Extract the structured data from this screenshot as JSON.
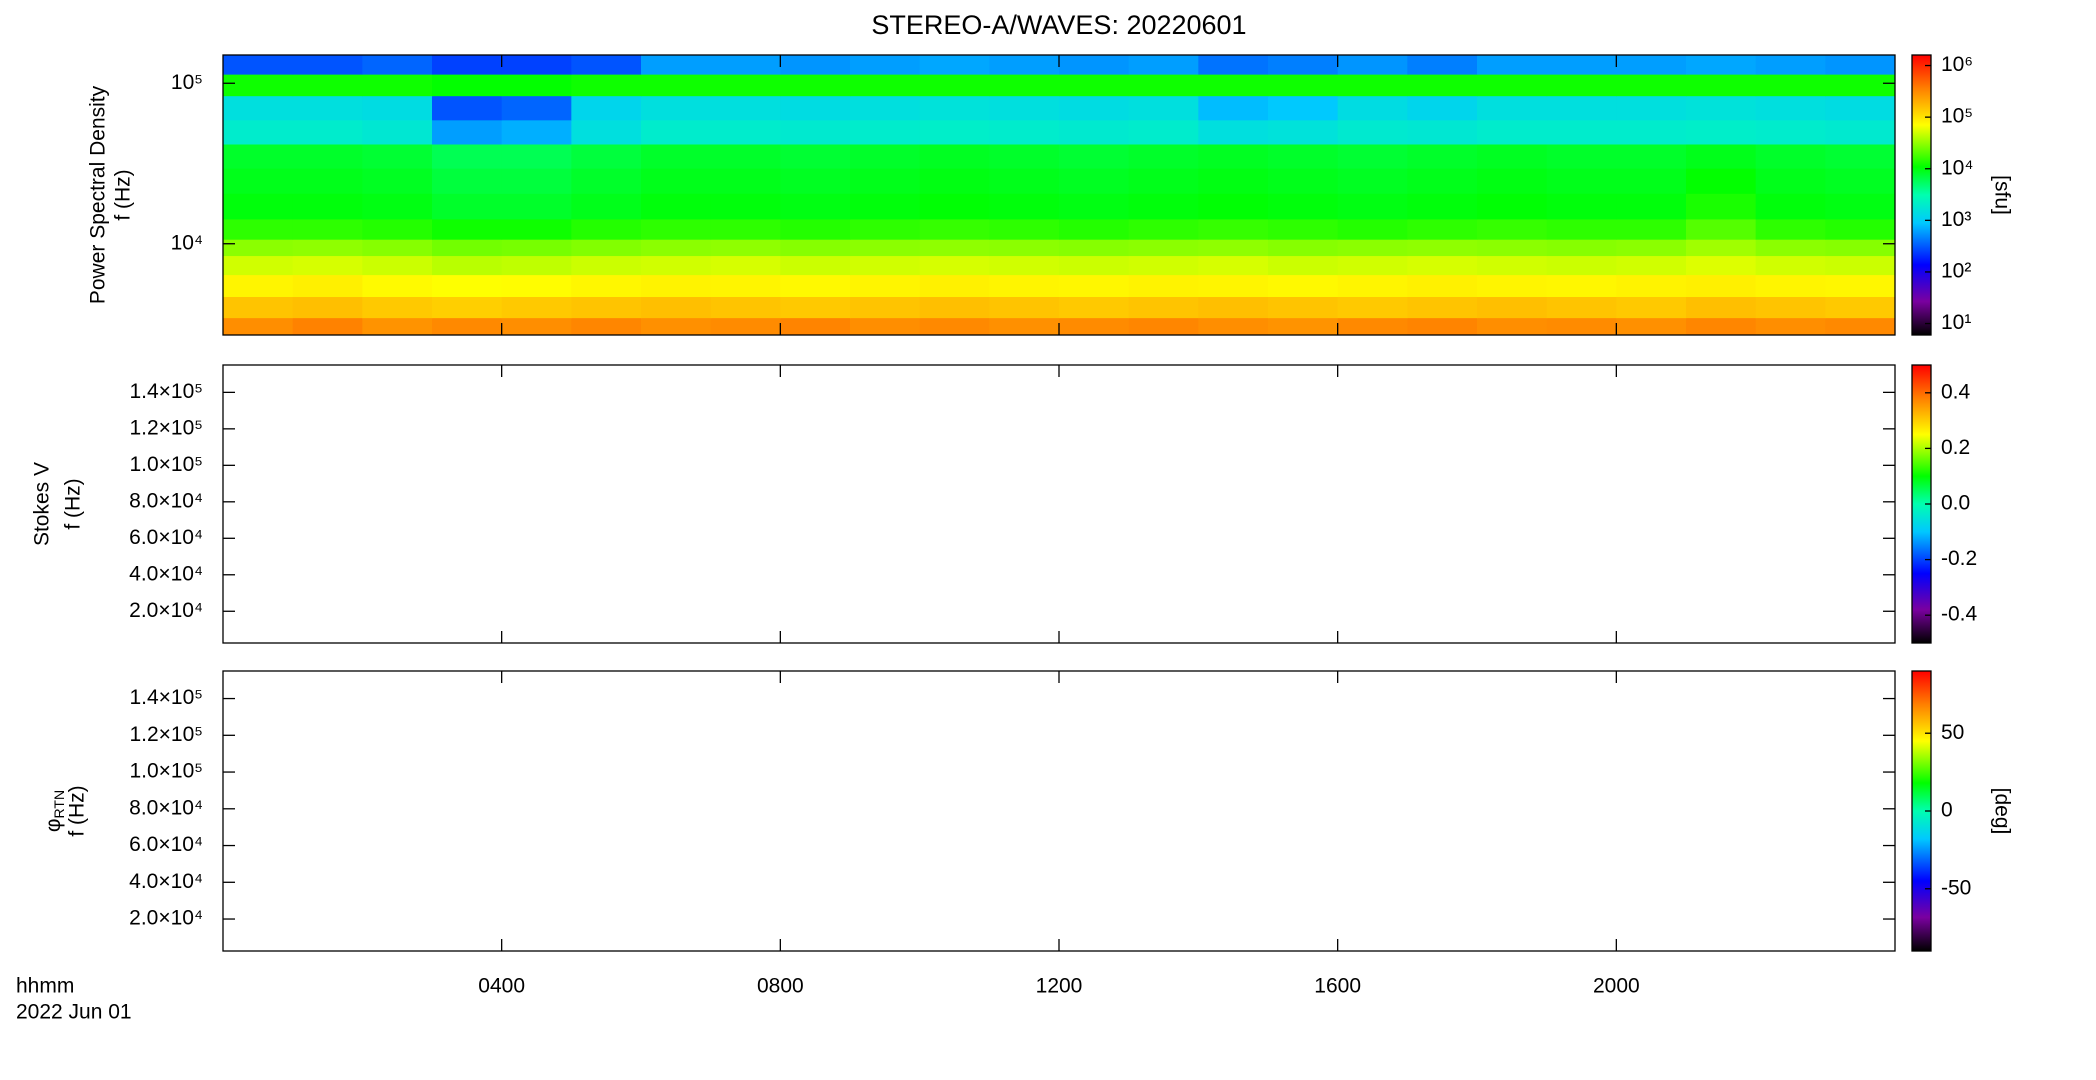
{
  "title": "STEREO-A/WAVES: 20220601",
  "time_axis": {
    "label": "hhmm",
    "date": "2022 Jun 01",
    "xlim": [
      0,
      24
    ],
    "xticks": [
      {
        "value": 4,
        "label": "0400"
      },
      {
        "value": 8,
        "label": "0800"
      },
      {
        "value": 12,
        "label": "1200"
      },
      {
        "value": 16,
        "label": "1600"
      },
      {
        "value": 20,
        "label": "2000"
      }
    ]
  },
  "chart_data": [
    {
      "type": "heatmap",
      "ylabel": [
        "Power Spectral Density",
        "f (Hz)"
      ],
      "ylog": true,
      "ylim": [
        2700,
        150000
      ],
      "yticks": [
        {
          "value": 10000,
          "label": "10⁴"
        },
        {
          "value": 100000,
          "label": "10⁵"
        }
      ],
      "x": [
        0.5,
        1.5,
        2.5,
        3.5,
        4.5,
        5.5,
        6.5,
        7.5,
        8.5,
        9.5,
        10.5,
        11.5,
        12.5,
        13.5,
        14.5,
        15.5,
        16.5,
        17.5,
        18.5,
        19.5,
        20.5,
        21.5,
        22.5,
        23.5
      ],
      "y": [
        3000,
        4000,
        5500,
        7500,
        9500,
        12000,
        17000,
        25000,
        35000,
        50000,
        70000,
        100000,
        130000
      ],
      "z": [
        [
          300000,
          350000,
          280000,
          320000,
          300000,
          330000,
          290000,
          310000,
          340000,
          300000,
          320000,
          290000,
          310000,
          330000,
          300000,
          280000,
          320000,
          340000,
          300000,
          310000,
          290000,
          330000,
          300000,
          320000
        ],
        [
          150000,
          160000,
          140000,
          130000,
          140000,
          150000,
          160000,
          150000,
          140000,
          150000,
          160000,
          150000,
          140000,
          150000,
          160000,
          150000,
          140000,
          150000,
          160000,
          150000,
          140000,
          160000,
          150000,
          140000
        ],
        [
          80000,
          85000,
          75000,
          70000,
          72000,
          78000,
          82000,
          80000,
          76000,
          80000,
          84000,
          80000,
          78000,
          82000,
          80000,
          76000,
          80000,
          84000,
          80000,
          78000,
          82000,
          85000,
          80000,
          78000
        ],
        [
          50000,
          52000,
          48000,
          42000,
          44000,
          48000,
          50000,
          52000,
          48000,
          50000,
          52000,
          50000,
          48000,
          50000,
          52000,
          48000,
          50000,
          52000,
          50000,
          48000,
          50000,
          55000,
          50000,
          48000
        ],
        [
          30000,
          31000,
          29000,
          25000,
          26000,
          28000,
          30000,
          31000,
          29000,
          30000,
          31000,
          30000,
          29000,
          30000,
          31000,
          29000,
          30000,
          31000,
          30000,
          29000,
          30000,
          35000,
          30000,
          29000
        ],
        [
          15000,
          15000,
          14000,
          12000,
          12000,
          14000,
          15000,
          15000,
          14000,
          15000,
          16000,
          15000,
          14000,
          15000,
          16000,
          15000,
          14000,
          15000,
          16000,
          15000,
          15000,
          20000,
          15000,
          14000
        ],
        [
          10000,
          10000,
          9500,
          8000,
          8000,
          9000,
          10000,
          10000,
          9500,
          10000,
          10500,
          10000,
          9500,
          10000,
          10500,
          10000,
          9500,
          10000,
          10500,
          10000,
          10000,
          13000,
          10000,
          9500
        ],
        [
          9000,
          9000,
          8500,
          7000,
          7000,
          8000,
          9000,
          9000,
          8500,
          9000,
          9500,
          9000,
          8500,
          9000,
          9500,
          9000,
          8500,
          9000,
          9500,
          9000,
          9000,
          11000,
          9000,
          8500
        ],
        [
          8000,
          8000,
          7500,
          6000,
          6000,
          7000,
          8000,
          8000,
          7500,
          8000,
          8500,
          8000,
          7500,
          8000,
          8500,
          8000,
          7500,
          8000,
          8500,
          8000,
          8000,
          9000,
          8000,
          7500
        ],
        [
          2000,
          2000,
          1800,
          600,
          700,
          1500,
          2000,
          2000,
          1900,
          2000,
          2100,
          2000,
          1900,
          2000,
          1500,
          1600,
          1900,
          1800,
          2000,
          2000,
          2000,
          2100,
          2000,
          1900
        ],
        [
          1500,
          1500,
          1400,
          300,
          350,
          1200,
          1500,
          1500,
          1400,
          1500,
          1600,
          1500,
          1400,
          1500,
          800,
          900,
          1400,
          1200,
          1500,
          1500,
          1500,
          1600,
          1500,
          1400
        ],
        [
          12000,
          12000,
          12000,
          11000,
          11000,
          12000,
          12000,
          12000,
          12000,
          12000,
          12000,
          12000,
          12000,
          12000,
          12000,
          12000,
          12000,
          12000,
          12000,
          12000,
          12000,
          12000,
          12000,
          12000
        ],
        [
          300,
          300,
          350,
          250,
          250,
          300,
          600,
          600,
          550,
          600,
          650,
          600,
          550,
          600,
          400,
          450,
          550,
          450,
          600,
          600,
          600,
          650,
          600,
          550
        ]
      ],
      "zlog": true,
      "zlim": [
        6,
        1600000
      ],
      "zticks": [
        {
          "value": 10,
          "label": "10¹"
        },
        {
          "value": 100,
          "label": "10²"
        },
        {
          "value": 1000,
          "label": "10³"
        },
        {
          "value": 10000,
          "label": "10⁴"
        },
        {
          "value": 100000,
          "label": "10⁵"
        },
        {
          "value": 1000000,
          "label": "10⁶"
        }
      ],
      "zlabel": "[sfu]"
    },
    {
      "type": "heatmap",
      "ylabel": [
        "Stokes V",
        "f (Hz)"
      ],
      "ylog": false,
      "ylim": [
        2600,
        155000
      ],
      "yticks": [
        {
          "value": 20000,
          "label": "2.0×10⁴"
        },
        {
          "value": 40000,
          "label": "4.0×10⁴"
        },
        {
          "value": 60000,
          "label": "6.0×10⁴"
        },
        {
          "value": 80000,
          "label": "8.0×10⁴"
        },
        {
          "value": 100000,
          "label": "1.0×10⁵"
        },
        {
          "value": 120000,
          "label": "1.2×10⁵"
        },
        {
          "value": 140000,
          "label": "1.4×10⁵"
        }
      ],
      "zlog": false,
      "zlim": [
        -0.5,
        0.5
      ],
      "zticks": [
        {
          "value": -0.4,
          "label": "-0.4"
        },
        {
          "value": -0.2,
          "label": "-0.2"
        },
        {
          "value": 0.0,
          "label": "0.0"
        },
        {
          "value": 0.2,
          "label": "0.2"
        },
        {
          "value": 0.4,
          "label": "0.4"
        }
      ]
    },
    {
      "type": "heatmap",
      "ylabel": [
        {
          "symbol": "φ",
          "subscript": "RTN"
        },
        "f (Hz)"
      ],
      "ylog": false,
      "ylim": [
        2600,
        155000
      ],
      "yticks": [
        {
          "value": 20000,
          "label": "2.0×10⁴"
        },
        {
          "value": 40000,
          "label": "4.0×10⁴"
        },
        {
          "value": 60000,
          "label": "6.0×10⁴"
        },
        {
          "value": 80000,
          "label": "8.0×10⁴"
        },
        {
          "value": 100000,
          "label": "1.0×10⁵"
        },
        {
          "value": 120000,
          "label": "1.2×10⁵"
        },
        {
          "value": 140000,
          "label": "1.4×10⁵"
        }
      ],
      "zlog": false,
      "zlim": [
        -90,
        90
      ],
      "zticks": [
        -50,
        0,
        50
      ],
      "zlabel": "[deg]"
    }
  ]
}
